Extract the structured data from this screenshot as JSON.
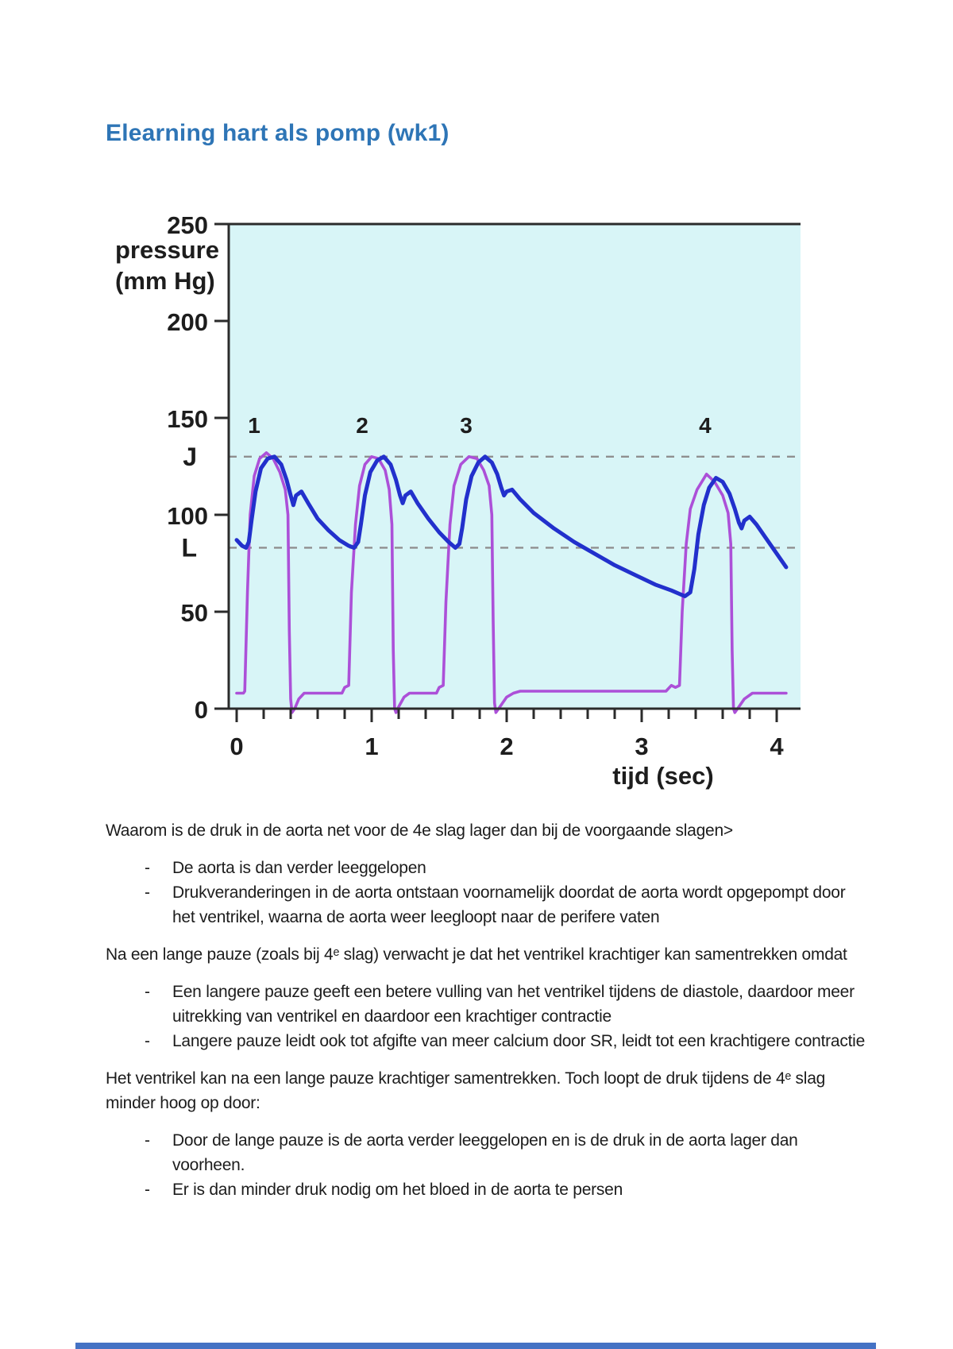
{
  "page": {
    "title": "Elearning hart als pomp (wk1)",
    "title_color": "#2E75B6"
  },
  "chart_data": {
    "type": "line",
    "title": "",
    "xlabel": "tijd (sec)",
    "ylabel": "pressure (mm Hg)",
    "ylabel_lines": [
      "pressure",
      "(mm Hg)"
    ],
    "xlim": [
      0,
      4.1
    ],
    "ylim": [
      0,
      250
    ],
    "x_ticks": [
      0,
      1,
      2,
      3,
      4
    ],
    "x_minor_step": 0.2,
    "y_ticks": [
      0,
      50,
      100,
      150,
      200,
      250
    ],
    "grid": false,
    "legend": "none",
    "plot_bg": "#D8F5F7",
    "axis_color": "#2b2b2b",
    "reference_line_color": "#8f8f8f",
    "beat_labels": [
      {
        "label": "1",
        "t": 0.13
      },
      {
        "label": "2",
        "t": 0.93
      },
      {
        "label": "3",
        "t": 1.7
      },
      {
        "label": "4",
        "t": 3.47
      }
    ],
    "reference_lines": [
      {
        "label": "J",
        "value": 130
      },
      {
        "label": "L",
        "value": 83
      }
    ],
    "series": [
      {
        "name": "ventricular pressure",
        "color": "#AC50D8",
        "points": [
          [
            0,
            8
          ],
          [
            0.05,
            8
          ],
          [
            0.06,
            9
          ],
          [
            0.08,
            60
          ],
          [
            0.1,
            100
          ],
          [
            0.13,
            120
          ],
          [
            0.17,
            129
          ],
          [
            0.22,
            132
          ],
          [
            0.27,
            129
          ],
          [
            0.32,
            122
          ],
          [
            0.36,
            113
          ],
          [
            0.38,
            100
          ],
          [
            0.39,
            40
          ],
          [
            0.4,
            5
          ],
          [
            0.41,
            -2
          ],
          [
            0.43,
            0
          ],
          [
            0.46,
            5
          ],
          [
            0.5,
            8
          ],
          [
            0.78,
            8
          ],
          [
            0.8,
            11
          ],
          [
            0.83,
            12
          ],
          [
            0.85,
            60
          ],
          [
            0.88,
            95
          ],
          [
            0.91,
            115
          ],
          [
            0.95,
            126
          ],
          [
            1.0,
            130
          ],
          [
            1.05,
            129
          ],
          [
            1.1,
            123
          ],
          [
            1.13,
            113
          ],
          [
            1.15,
            95
          ],
          [
            1.16,
            30
          ],
          [
            1.17,
            0
          ],
          [
            1.18,
            -2
          ],
          [
            1.2,
            1
          ],
          [
            1.24,
            6
          ],
          [
            1.28,
            8
          ],
          [
            1.48,
            8
          ],
          [
            1.5,
            11
          ],
          [
            1.53,
            12
          ],
          [
            1.55,
            55
          ],
          [
            1.58,
            95
          ],
          [
            1.61,
            115
          ],
          [
            1.66,
            126
          ],
          [
            1.72,
            130
          ],
          [
            1.78,
            129
          ],
          [
            1.83,
            123
          ],
          [
            1.87,
            115
          ],
          [
            1.89,
            100
          ],
          [
            1.9,
            45
          ],
          [
            1.91,
            3
          ],
          [
            1.92,
            -2
          ],
          [
            1.95,
            1
          ],
          [
            2.0,
            6
          ],
          [
            2.05,
            8
          ],
          [
            2.1,
            9
          ],
          [
            3.18,
            9
          ],
          [
            3.22,
            12
          ],
          [
            3.25,
            11
          ],
          [
            3.28,
            12
          ],
          [
            3.3,
            50
          ],
          [
            3.33,
            85
          ],
          [
            3.36,
            103
          ],
          [
            3.41,
            113
          ],
          [
            3.48,
            121
          ],
          [
            3.54,
            117
          ],
          [
            3.6,
            110
          ],
          [
            3.64,
            101
          ],
          [
            3.66,
            85
          ],
          [
            3.67,
            30
          ],
          [
            3.68,
            0
          ],
          [
            3.69,
            -2
          ],
          [
            3.72,
            1
          ],
          [
            3.76,
            5
          ],
          [
            3.82,
            8
          ],
          [
            4.07,
            8
          ]
        ]
      },
      {
        "name": "aortic pressure",
        "color": "#2230CC",
        "points": [
          [
            0,
            87
          ],
          [
            0.04,
            84
          ],
          [
            0.07,
            83
          ],
          [
            0.09,
            86
          ],
          [
            0.11,
            97
          ],
          [
            0.14,
            112
          ],
          [
            0.18,
            124
          ],
          [
            0.23,
            129
          ],
          [
            0.28,
            130
          ],
          [
            0.33,
            126
          ],
          [
            0.37,
            118
          ],
          [
            0.4,
            110
          ],
          [
            0.42,
            105
          ],
          [
            0.44,
            110
          ],
          [
            0.48,
            112
          ],
          [
            0.53,
            106
          ],
          [
            0.6,
            98
          ],
          [
            0.68,
            92
          ],
          [
            0.76,
            87
          ],
          [
            0.83,
            84
          ],
          [
            0.87,
            83
          ],
          [
            0.9,
            86
          ],
          [
            0.92,
            95
          ],
          [
            0.95,
            110
          ],
          [
            0.99,
            122
          ],
          [
            1.04,
            128
          ],
          [
            1.09,
            130
          ],
          [
            1.14,
            126
          ],
          [
            1.18,
            118
          ],
          [
            1.21,
            110
          ],
          [
            1.23,
            106
          ],
          [
            1.25,
            110
          ],
          [
            1.29,
            112
          ],
          [
            1.34,
            106
          ],
          [
            1.42,
            98
          ],
          [
            1.5,
            91
          ],
          [
            1.57,
            86
          ],
          [
            1.62,
            83
          ],
          [
            1.65,
            85
          ],
          [
            1.67,
            93
          ],
          [
            1.7,
            108
          ],
          [
            1.74,
            120
          ],
          [
            1.79,
            127
          ],
          [
            1.84,
            130
          ],
          [
            1.89,
            127
          ],
          [
            1.93,
            121
          ],
          [
            1.96,
            114
          ],
          [
            1.98,
            110
          ],
          [
            2.0,
            112
          ],
          [
            2.04,
            113
          ],
          [
            2.1,
            108
          ],
          [
            2.2,
            101
          ],
          [
            2.35,
            93
          ],
          [
            2.5,
            86
          ],
          [
            2.65,
            80
          ],
          [
            2.8,
            74
          ],
          [
            2.95,
            69
          ],
          [
            3.1,
            64
          ],
          [
            3.22,
            61
          ],
          [
            3.32,
            58
          ],
          [
            3.36,
            60
          ],
          [
            3.39,
            72
          ],
          [
            3.42,
            90
          ],
          [
            3.46,
            105
          ],
          [
            3.5,
            114
          ],
          [
            3.55,
            119
          ],
          [
            3.6,
            117
          ],
          [
            3.65,
            111
          ],
          [
            3.69,
            103
          ],
          [
            3.72,
            96
          ],
          [
            3.74,
            93
          ],
          [
            3.76,
            97
          ],
          [
            3.8,
            99
          ],
          [
            3.85,
            95
          ],
          [
            3.92,
            88
          ],
          [
            4.0,
            80
          ],
          [
            4.07,
            73
          ]
        ]
      }
    ]
  },
  "content": {
    "blocks": [
      {
        "type": "para",
        "text": "Waarom is de druk in de aorta net voor de 4e slag lager dan bij de voorgaande slagen>"
      },
      {
        "type": "bullets",
        "items": [
          "De aorta is dan verder leeggelopen",
          "Drukveranderingen in de aorta ontstaan voornamelijk doordat de aorta wordt opgepompt door het ventrikel, waarna de aorta weer leegloopt naar de perifere vaten"
        ]
      },
      {
        "type": "para",
        "text": "Na een lange pauze (zoals bij 4ᵉ slag) verwacht je dat het ventrikel krachtiger kan samentrekken omdat"
      },
      {
        "type": "bullets",
        "items": [
          "Een langere pauze geeft een betere vulling van het ventrikel tijdens de diastole, daardoor meer uitrekking van ventrikel en daardoor een krachtiger contractie",
          "Langere pauze leidt ook tot afgifte van meer calcium door SR, leidt tot een krachtigere contractie"
        ]
      },
      {
        "type": "para",
        "text": "Het ventrikel kan na een lange pauze krachtiger samentrekken. Toch loopt de druk tijdens de 4ᵉ slag minder hoog op door:"
      },
      {
        "type": "bullets",
        "items": [
          "Door de lange pauze is de aorta verder leeggelopen en is de druk in de aorta lager dan voorheen.",
          "Er is dan minder druk nodig om het bloed in de aorta te persen"
        ]
      }
    ]
  },
  "decor": {
    "bottom_bar_color": "#4472C4"
  }
}
